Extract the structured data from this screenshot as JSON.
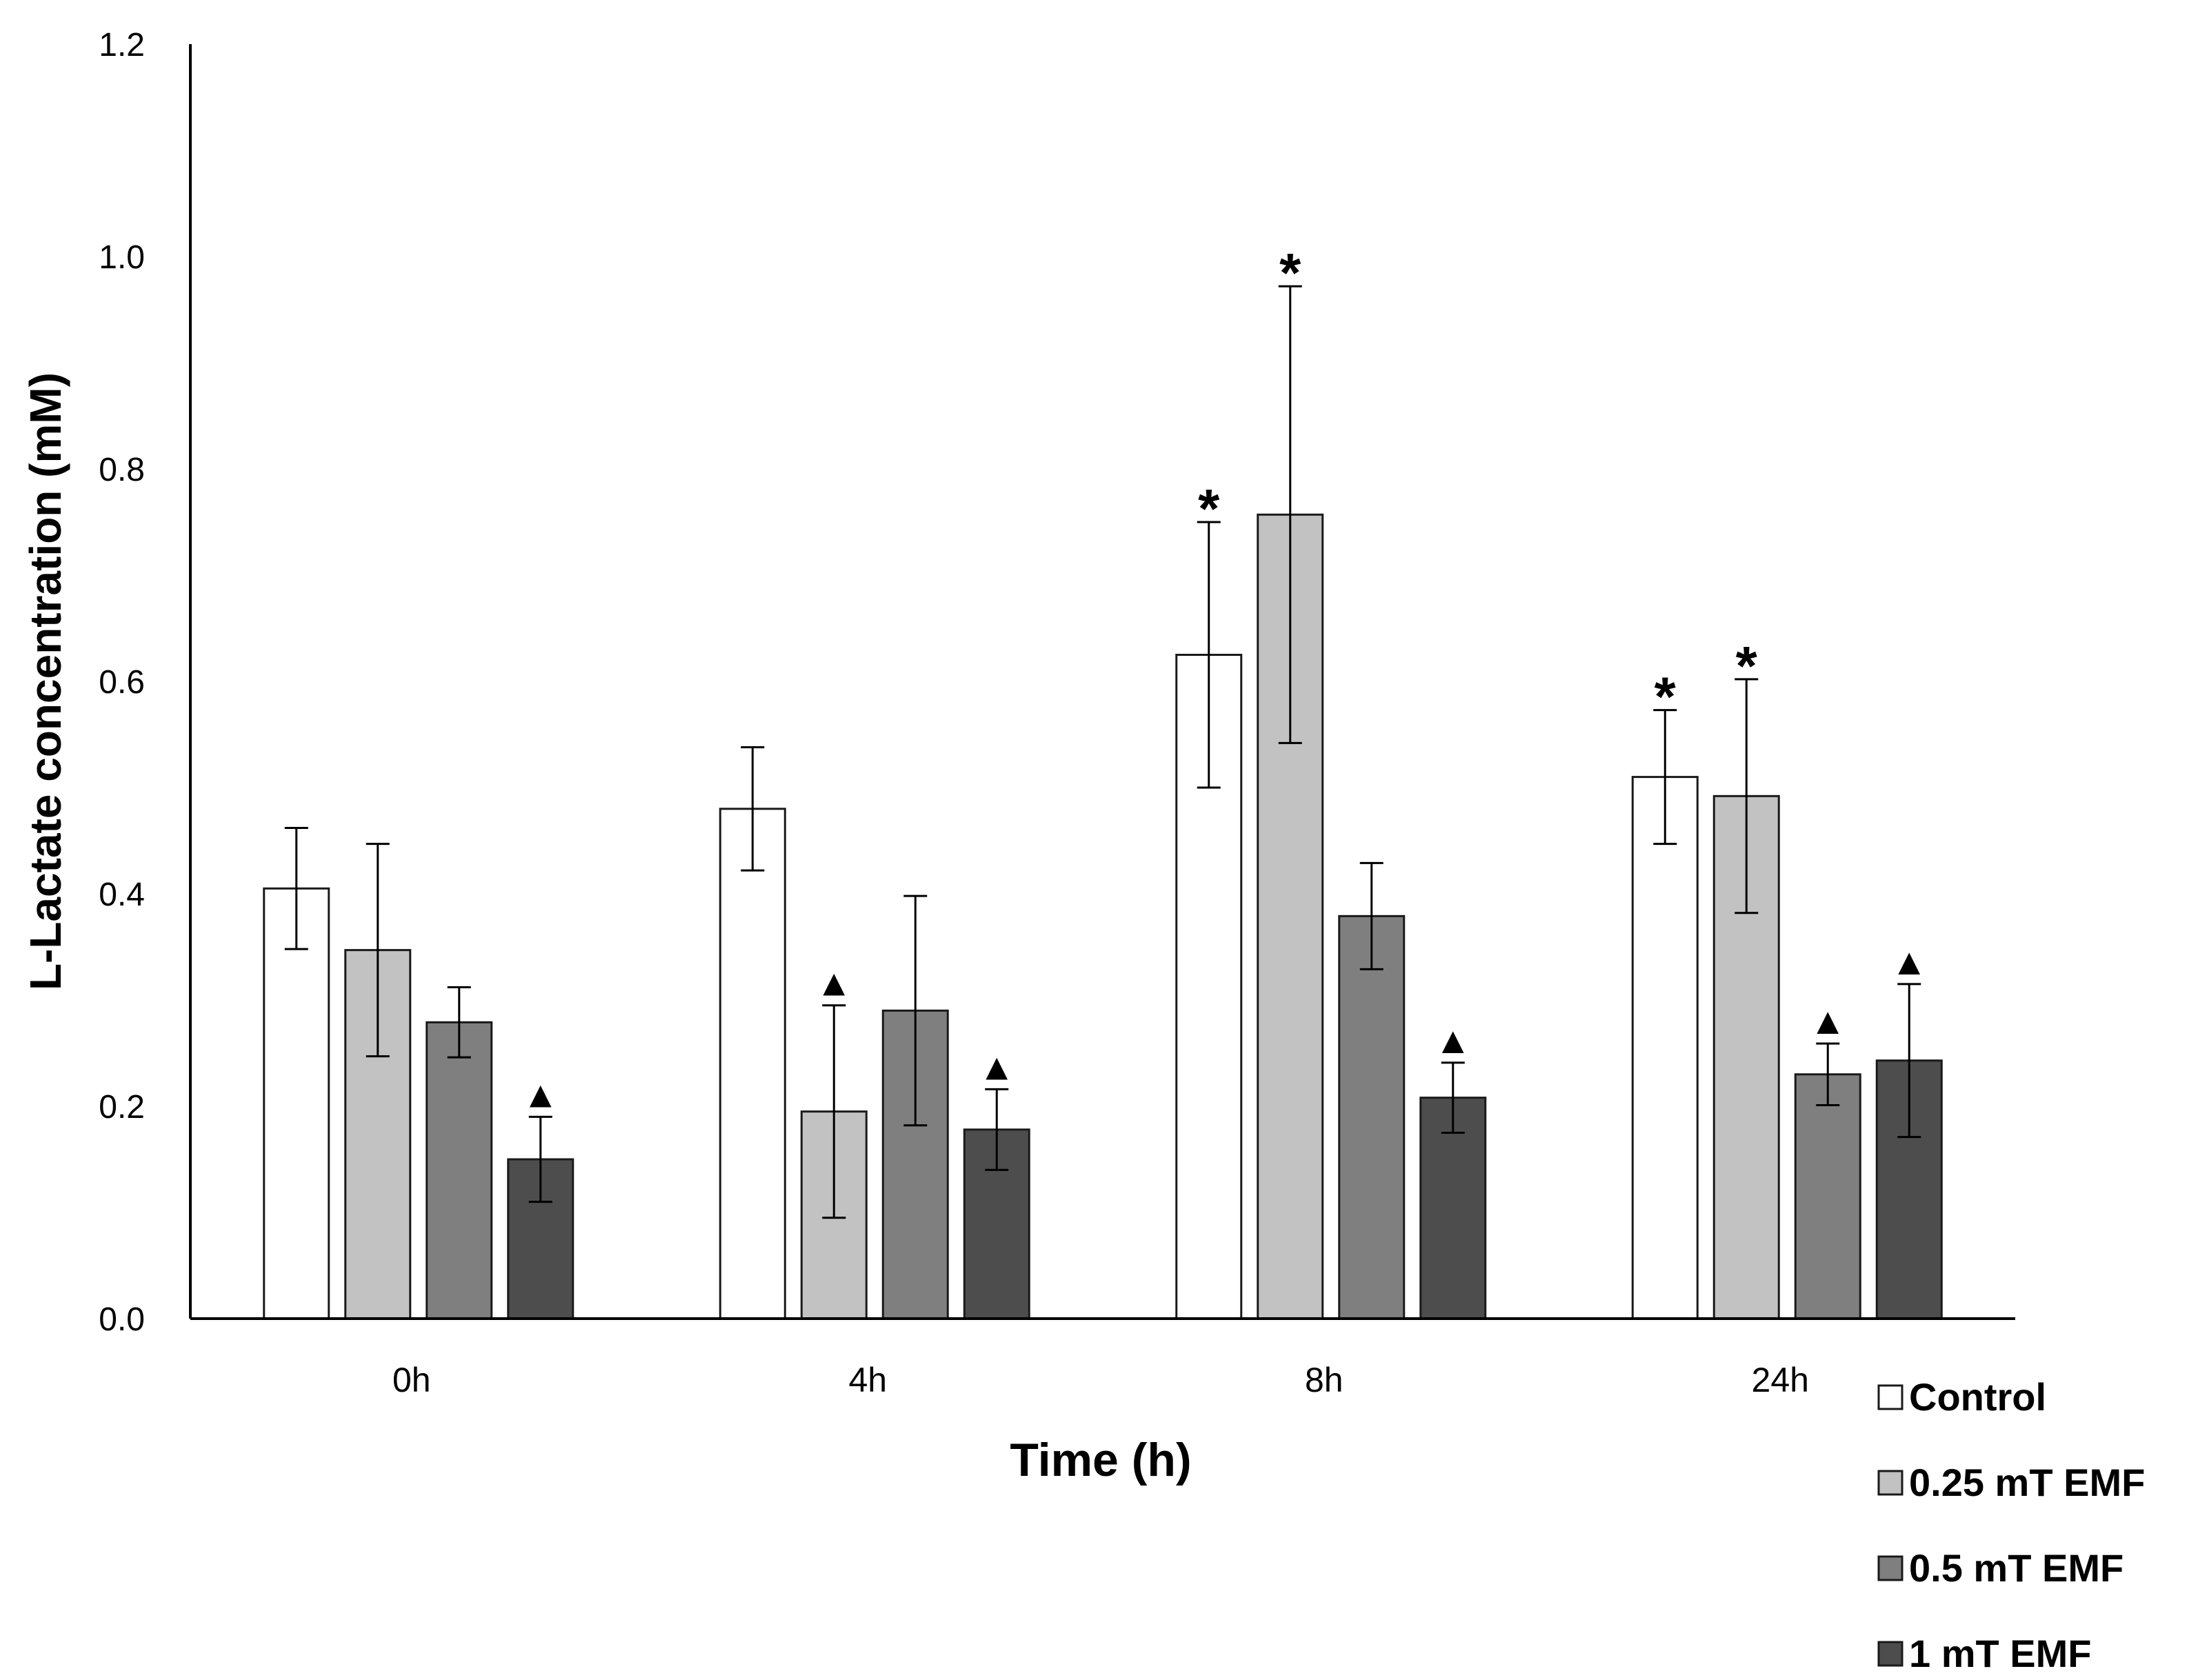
{
  "chart_data": {
    "type": "bar",
    "title": "",
    "xlabel": "Time (h)",
    "ylabel": "L-Lactate concentration (mM)",
    "ylim": [
      0,
      1.2
    ],
    "yticks": [
      "0.0",
      "0.2",
      "0.4",
      "0.6",
      "0.8",
      "1.0",
      "1.2"
    ],
    "categories": [
      "0h",
      "4h",
      "8h",
      "24h"
    ],
    "grid": false,
    "legend_position": "bottom-right",
    "series": [
      {
        "name": "Control",
        "color": "#ffffff",
        "values": [
          0.405,
          0.48,
          0.625,
          0.51
        ],
        "errors": [
          0.057,
          0.058,
          0.125,
          0.063
        ],
        "markers": [
          "",
          "",
          "*",
          "*"
        ]
      },
      {
        "name": "0.25 mT EMF",
        "color": "#c2c2c2",
        "values": [
          0.347,
          0.195,
          0.757,
          0.492
        ],
        "errors": [
          0.1,
          0.1,
          0.215,
          0.11
        ],
        "markers": [
          "",
          "▲",
          "*",
          "*"
        ]
      },
      {
        "name": "0.5 mT EMF",
        "color": "#7f7f7f",
        "values": [
          0.279,
          0.29,
          0.379,
          0.23
        ],
        "errors": [
          0.033,
          0.108,
          0.05,
          0.029
        ],
        "markers": [
          "",
          "",
          "",
          "▲"
        ]
      },
      {
        "name": "1 mT EMF",
        "color": "#4d4d4d",
        "values": [
          0.15,
          0.178,
          0.208,
          0.243
        ],
        "errors": [
          0.04,
          0.038,
          0.033,
          0.072
        ],
        "markers": [
          "▲",
          "▲",
          "▲",
          "▲"
        ]
      }
    ]
  }
}
